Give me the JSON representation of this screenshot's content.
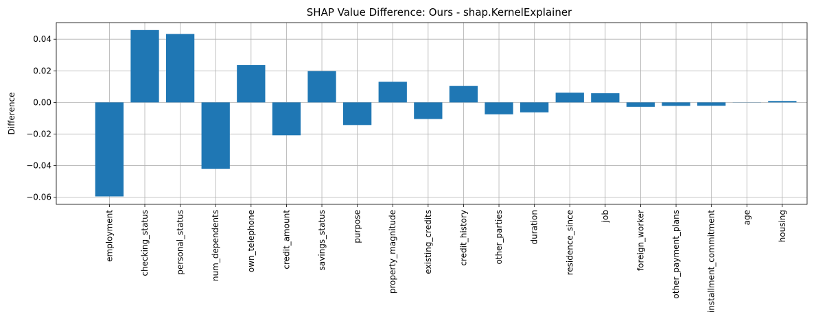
{
  "chart_data": {
    "type": "bar",
    "title": "SHAP Value Difference: Ours - shap.KernelExplainer",
    "xlabel": "",
    "ylabel": "Difference",
    "categories": [
      "employment",
      "checking_status",
      "personal_status",
      "num_dependents",
      "own_telephone",
      "credit_amount",
      "savings_status",
      "purpose",
      "property_magnitude",
      "existing_credits",
      "credit_history",
      "other_parties",
      "duration",
      "residence_since",
      "job",
      "foreign_worker",
      "other_payment_plans",
      "installment_commitment",
      "age",
      "housing"
    ],
    "values": [
      -0.0595,
      0.0458,
      0.0433,
      -0.042,
      0.0236,
      -0.0208,
      0.0198,
      -0.0143,
      0.0131,
      -0.0105,
      0.0105,
      -0.0075,
      -0.0063,
      0.0062,
      0.0058,
      -0.0028,
      -0.0022,
      -0.0021,
      -0.0001,
      0.0009
    ],
    "ylim": [
      -0.0645,
      0.0505
    ],
    "yticks": [
      -0.06,
      -0.04,
      -0.02,
      0.0,
      0.02,
      0.04
    ],
    "ytick_labels": [
      "−0.06",
      "−0.04",
      "−0.02",
      "0.00",
      "0.02",
      "0.04"
    ],
    "grid": true,
    "bar_color": "#1f77b4"
  }
}
